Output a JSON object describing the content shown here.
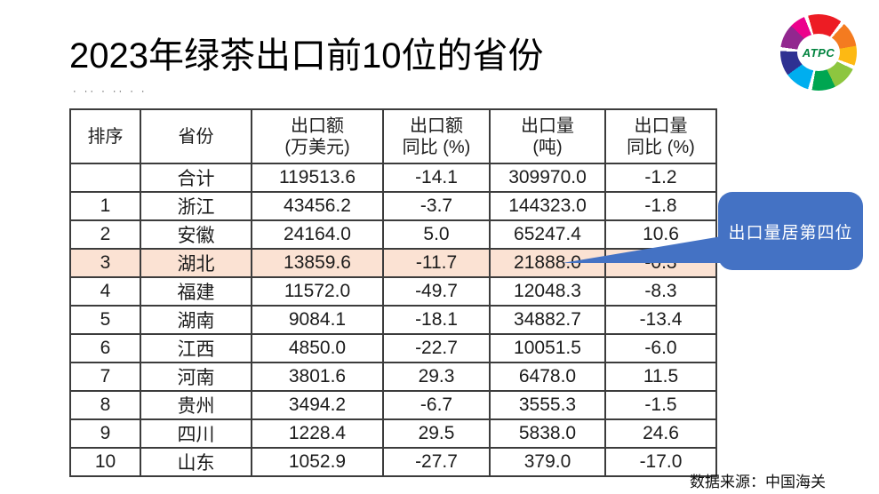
{
  "slide": {
    "title": "2023年绿茶出口前10位的省份",
    "source_note": "数据来源：中国海关",
    "artifact_text": "· ·· · ·· · ·"
  },
  "logo": {
    "text": "ATPC",
    "text_color": "#00833e",
    "style": "rainbow-swirl-ring"
  },
  "callout": {
    "text": "出口量居第四位",
    "fill": "#4472C4",
    "text_color": "#ffffff",
    "points_to": "21888.0"
  },
  "table": {
    "highlight_color": "#FBE2D3",
    "highlight_row_index": 3,
    "headers": [
      "排序",
      "省份",
      "出口额\n(万美元)",
      "出口额\n同比 (%)",
      "出口量\n(吨)",
      "出口量\n同比 (%)"
    ],
    "rows": [
      [
        "",
        "合计",
        "119513.6",
        "-14.1",
        "309970.0",
        "-1.2"
      ],
      [
        "1",
        "浙江",
        "43456.2",
        "-3.7",
        "144323.0",
        "-1.8"
      ],
      [
        "2",
        "安徽",
        "24164.0",
        "5.0",
        "65247.4",
        "10.6"
      ],
      [
        "3",
        "湖北",
        "13859.6",
        "-11.7",
        "21888.0",
        "-0.3"
      ],
      [
        "4",
        "福建",
        "11572.0",
        "-49.7",
        "12048.3",
        "-8.3"
      ],
      [
        "5",
        "湖南",
        "9084.1",
        "-18.1",
        "34882.7",
        "-13.4"
      ],
      [
        "6",
        "江西",
        "4850.0",
        "-22.7",
        "10051.5",
        "-6.0"
      ],
      [
        "7",
        "河南",
        "3801.6",
        "29.3",
        "6478.0",
        "11.5"
      ],
      [
        "8",
        "贵州",
        "3494.2",
        "-6.7",
        "3555.3",
        "-1.5"
      ],
      [
        "9",
        "四川",
        "1228.4",
        "29.5",
        "5838.0",
        "24.6"
      ],
      [
        "10",
        "山东",
        "1052.9",
        "-27.7",
        "379.0",
        "-17.0"
      ]
    ]
  },
  "chart_data": {
    "type": "table",
    "title": "2023年绿茶出口前10位的省份",
    "columns": [
      "排序",
      "省份",
      "出口额(万美元)",
      "出口额同比(%)",
      "出口量(吨)",
      "出口量同比(%)"
    ],
    "rows": [
      {
        "rank": null,
        "province": "合计",
        "export_value": 119513.6,
        "export_value_yoy": -14.1,
        "export_volume": 309970.0,
        "export_volume_yoy": -1.2
      },
      {
        "rank": 1,
        "province": "浙江",
        "export_value": 43456.2,
        "export_value_yoy": -3.7,
        "export_volume": 144323.0,
        "export_volume_yoy": -1.8
      },
      {
        "rank": 2,
        "province": "安徽",
        "export_value": 24164.0,
        "export_value_yoy": 5.0,
        "export_volume": 65247.4,
        "export_volume_yoy": 10.6
      },
      {
        "rank": 3,
        "province": "湖北",
        "export_value": 13859.6,
        "export_value_yoy": -11.7,
        "export_volume": 21888.0,
        "export_volume_yoy": -0.3
      },
      {
        "rank": 4,
        "province": "福建",
        "export_value": 11572.0,
        "export_value_yoy": -49.7,
        "export_volume": 12048.3,
        "export_volume_yoy": -8.3
      },
      {
        "rank": 5,
        "province": "湖南",
        "export_value": 9084.1,
        "export_value_yoy": -18.1,
        "export_volume": 34882.7,
        "export_volume_yoy": -13.4
      },
      {
        "rank": 6,
        "province": "江西",
        "export_value": 4850.0,
        "export_value_yoy": -22.7,
        "export_volume": 10051.5,
        "export_volume_yoy": -6.0
      },
      {
        "rank": 7,
        "province": "河南",
        "export_value": 3801.6,
        "export_value_yoy": 29.3,
        "export_volume": 6478.0,
        "export_volume_yoy": 11.5
      },
      {
        "rank": 8,
        "province": "贵州",
        "export_value": 3494.2,
        "export_value_yoy": -6.7,
        "export_volume": 3555.3,
        "export_volume_yoy": -1.5
      },
      {
        "rank": 9,
        "province": "四川",
        "export_value": 1228.4,
        "export_value_yoy": 29.5,
        "export_volume": 5838.0,
        "export_volume_yoy": 24.6
      },
      {
        "rank": 10,
        "province": "山东",
        "export_value": 1052.9,
        "export_value_yoy": -27.7,
        "export_volume": 379.0,
        "export_volume_yoy": -17.0
      }
    ],
    "annotation": "出口量居第四位",
    "highlighted_row": "湖北",
    "source": "数据来源：中国海关"
  }
}
